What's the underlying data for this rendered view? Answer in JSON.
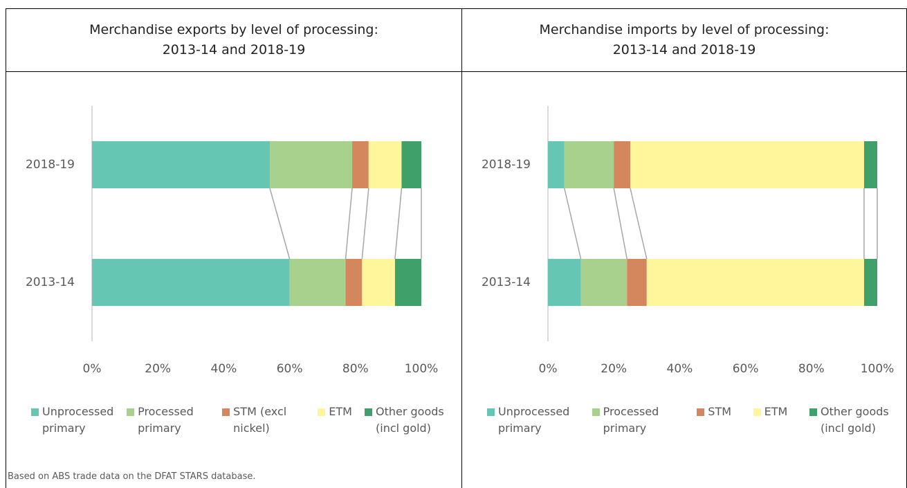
{
  "chart_data": [
    {
      "type": "bar",
      "orientation": "horizontal",
      "stacked": true,
      "title": "Merchandise exports by level of processing:\n2013-14 and 2018-19",
      "categories": [
        "2018-19",
        "2013-14"
      ],
      "series": [
        {
          "name": "Unprocessed primary",
          "color": "#66c6b4",
          "values": [
            54,
            60
          ]
        },
        {
          "name": "Processed primary",
          "color": "#a9d18e",
          "values": [
            25,
            17
          ]
        },
        {
          "name": "STM (excl nickel)",
          "color": "#d4875c",
          "values": [
            5,
            5
          ]
        },
        {
          "name": "ETM",
          "color": "#fff59a",
          "values": [
            10,
            10
          ]
        },
        {
          "name": "Other goods (incl gold)",
          "color": "#3fa06a",
          "values": [
            6,
            8
          ]
        }
      ],
      "xlim": [
        0,
        100
      ],
      "xticks": [
        {
          "value": 0,
          "label": "0%"
        },
        {
          "value": 20,
          "label": "20%"
        },
        {
          "value": 40,
          "label": "40%"
        },
        {
          "value": 60,
          "label": "60%"
        },
        {
          "value": 80,
          "label": "80%"
        },
        {
          "value": 100,
          "label": "100%"
        }
      ],
      "series_lines": true,
      "legend": "bottom"
    },
    {
      "type": "bar",
      "orientation": "horizontal",
      "stacked": true,
      "title": "Merchandise imports by level of processing:\n2013-14 and 2018-19",
      "categories": [
        "2018-19",
        "2013-14"
      ],
      "series": [
        {
          "name": "Unprocessed primary",
          "color": "#66c6b4",
          "values": [
            5,
            10
          ]
        },
        {
          "name": "Processed primary",
          "color": "#a9d18e",
          "values": [
            15,
            14
          ]
        },
        {
          "name": "STM",
          "color": "#d4875c",
          "values": [
            5,
            6
          ]
        },
        {
          "name": "ETM",
          "color": "#fff59a",
          "values": [
            71,
            66
          ]
        },
        {
          "name": "Other goods (incl gold)",
          "color": "#3fa06a",
          "values": [
            4,
            4
          ]
        }
      ],
      "xlim": [
        0,
        100
      ],
      "xticks": [
        {
          "value": 0,
          "label": "0%"
        },
        {
          "value": 20,
          "label": "20%"
        },
        {
          "value": 40,
          "label": "40%"
        },
        {
          "value": 60,
          "label": "60%"
        },
        {
          "value": 80,
          "label": "80%"
        },
        {
          "value": 100,
          "label": "100%"
        }
      ],
      "series_lines": true,
      "legend": "bottom"
    }
  ],
  "note": "Based on ABS trade data on the DFAT STARS database."
}
